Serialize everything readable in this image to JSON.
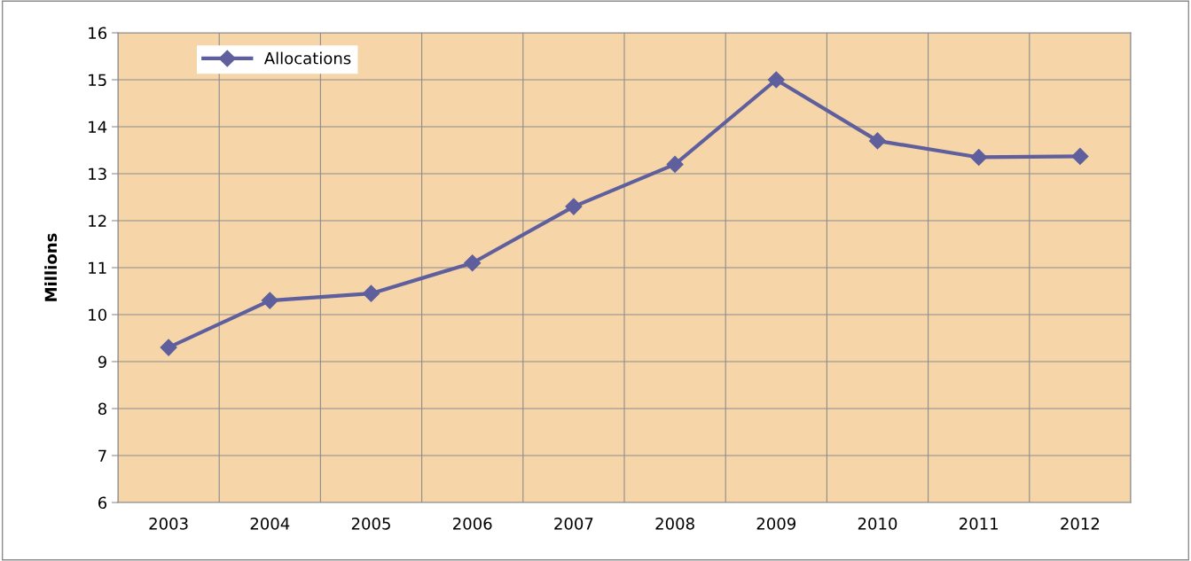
{
  "chart_data": {
    "type": "line",
    "ylabel": "Millions",
    "categories": [
      "2003",
      "2004",
      "2005",
      "2006",
      "2007",
      "2008",
      "2009",
      "2010",
      "2011",
      "2012"
    ],
    "series": [
      {
        "name": "Allocations",
        "color": "#5f5f9e",
        "values": [
          9.3,
          10.3,
          10.45,
          11.1,
          12.3,
          13.2,
          15.0,
          13.7,
          13.35,
          13.37
        ]
      }
    ],
    "ylim": [
      6,
      16
    ],
    "yticks": [
      6,
      7,
      8,
      9,
      10,
      11,
      12,
      13,
      14,
      15,
      16
    ],
    "grid": true,
    "legend": "top left",
    "marker": "diamond",
    "line_style": "solid"
  }
}
